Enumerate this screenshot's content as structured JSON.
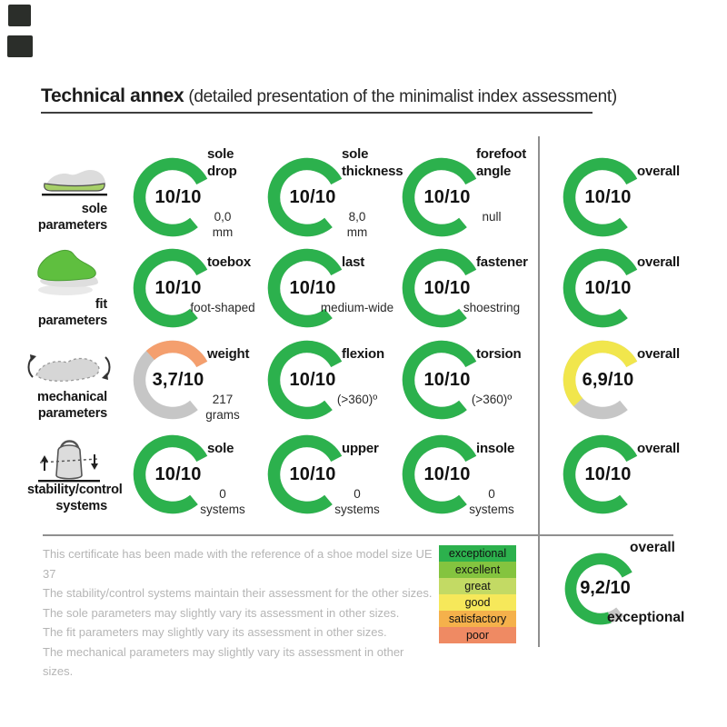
{
  "title": {
    "bold": "Technical annex",
    "rest": " (detailed presentation of the minimalist index assessment)"
  },
  "colors": {
    "green": "#2cb14d",
    "orange": "#f49f6e",
    "yellow": "#f1e64c",
    "track": "#c6c6c6"
  },
  "rows": [
    {
      "icon": "sole-parameters-icon",
      "label_lines": [
        "sole",
        "parameters"
      ],
      "cells": [
        {
          "label_lines": [
            "sole",
            "drop"
          ],
          "score": "10/10",
          "score_num": 10,
          "color": "green",
          "value_lines": [
            "0,0",
            "mm"
          ]
        },
        {
          "label_lines": [
            "sole",
            "thickness"
          ],
          "score": "10/10",
          "score_num": 10,
          "color": "green",
          "value_lines": [
            "8,0",
            "mm"
          ]
        },
        {
          "label_lines": [
            "forefoot",
            "angle"
          ],
          "score": "10/10",
          "score_num": 10,
          "color": "green",
          "value_lines": [
            "null"
          ]
        }
      ],
      "overall": {
        "label_lines": [
          "overall"
        ],
        "score": "10/10",
        "score_num": 10,
        "color": "green",
        "value_lines": []
      }
    },
    {
      "icon": "fit-parameters-icon",
      "label_lines": [
        "fit",
        "parameters"
      ],
      "cells": [
        {
          "label_lines": [
            "toebox"
          ],
          "score": "10/10",
          "score_num": 10,
          "color": "green",
          "value_lines": [
            "foot-shaped"
          ]
        },
        {
          "label_lines": [
            "last"
          ],
          "score": "10/10",
          "score_num": 10,
          "color": "green",
          "value_lines": [
            "medium-wide"
          ]
        },
        {
          "label_lines": [
            "fastener"
          ],
          "score": "10/10",
          "score_num": 10,
          "color": "green",
          "value_lines": [
            "shoestring"
          ]
        }
      ],
      "overall": {
        "label_lines": [
          "overall"
        ],
        "score": "10/10",
        "score_num": 10,
        "color": "green",
        "value_lines": []
      }
    },
    {
      "icon": "mechanical-parameters-icon",
      "label_lines": [
        "mechanical",
        "parameters"
      ],
      "cells": [
        {
          "label_lines": [
            "weight"
          ],
          "score": "3,7/10",
          "score_num": 3.7,
          "color": "orange",
          "value_lines": [
            "217",
            "grams"
          ]
        },
        {
          "label_lines": [
            "flexion"
          ],
          "score": "10/10",
          "score_num": 10,
          "color": "green",
          "value_lines": [
            "(>360)º"
          ]
        },
        {
          "label_lines": [
            "torsion"
          ],
          "score": "10/10",
          "score_num": 10,
          "color": "green",
          "value_lines": [
            "(>360)º"
          ]
        }
      ],
      "overall": {
        "label_lines": [
          "overall"
        ],
        "score": "6,9/10",
        "score_num": 6.9,
        "color": "yellow",
        "value_lines": []
      }
    },
    {
      "icon": "stability-control-systems-icon",
      "label_lines": [
        "stability/control",
        "systems"
      ],
      "cells": [
        {
          "label_lines": [
            "sole"
          ],
          "score": "10/10",
          "score_num": 10,
          "color": "green",
          "value_lines": [
            "0",
            "systems"
          ]
        },
        {
          "label_lines": [
            "upper"
          ],
          "score": "10/10",
          "score_num": 10,
          "color": "green",
          "value_lines": [
            "0",
            "systems"
          ]
        },
        {
          "label_lines": [
            "insole"
          ],
          "score": "10/10",
          "score_num": 10,
          "color": "green",
          "value_lines": [
            "0",
            "systems"
          ]
        }
      ],
      "overall": {
        "label_lines": [
          "overall"
        ],
        "score": "10/10",
        "score_num": 10,
        "color": "green",
        "value_lines": []
      }
    }
  ],
  "footer": {
    "lines": [
      "This certificate has been made with the reference of a shoe model size UE 37",
      "The stability/control systems maintain their assessment for the other sizes.",
      "The sole parameters may slightly vary its assessment in other sizes.",
      "The fit parameters may slightly vary its assessment in other sizes.",
      "The mechanical parameters may slightly vary its assessment in other sizes."
    ]
  },
  "legend": {
    "items": [
      {
        "label": "exceptional",
        "color": "#2cb14d"
      },
      {
        "label": "excellent",
        "color": "#84c43f"
      },
      {
        "label": "great",
        "color": "#c3da64"
      },
      {
        "label": "good",
        "color": "#f6e85a"
      },
      {
        "label": "satisfactory",
        "color": "#f5b14b"
      },
      {
        "label": "poor",
        "color": "#ef8a63"
      }
    ]
  },
  "final": {
    "label": "overall",
    "score": "9,2/10",
    "score_num": 9.2,
    "color": "green",
    "value": "exceptional"
  }
}
